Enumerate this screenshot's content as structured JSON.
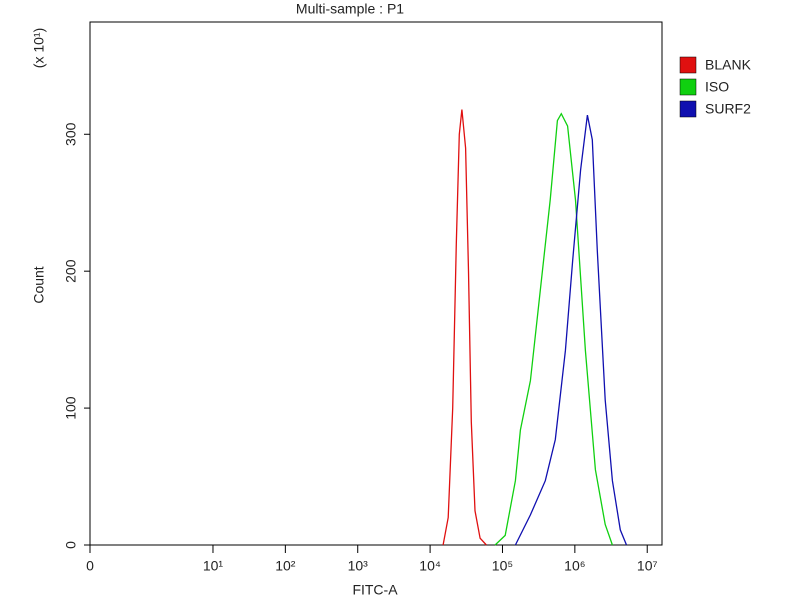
{
  "chart_data": {
    "type": "line",
    "title": "Multi-sample : P1",
    "xlabel": "FITC-A",
    "ylabel": "Count",
    "y_multiplier": "(x 10¹)",
    "xscale": "log",
    "xlim": [
      0,
      16000000
    ],
    "xticks": [
      0,
      {
        "value": 10,
        "label": "10¹"
      },
      {
        "value": 100,
        "label": "10²"
      },
      {
        "value": 1000,
        "label": "10³"
      },
      {
        "value": 10000,
        "label": "10⁴"
      },
      {
        "value": 100000,
        "label": "10⁵"
      },
      {
        "value": 1000000,
        "label": "10⁶"
      },
      {
        "value": 10000000,
        "label": "10⁷"
      }
    ],
    "ylim": [
      0,
      382
    ],
    "yticks": [
      0,
      100,
      200,
      300
    ],
    "legend": "right",
    "series": [
      {
        "name": "BLANK",
        "color": "#e01010",
        "x": [
          15100,
          17800,
          20500,
          23000,
          25300,
          27500,
          30900,
          33900,
          37100,
          41700,
          49000,
          60000
        ],
        "values": [
          0,
          20,
          100,
          220,
          300,
          318,
          290,
          200,
          90,
          25,
          5,
          0
        ]
      },
      {
        "name": "ISO",
        "color": "#10d010",
        "x": [
          79000,
          109000,
          151000,
          177000,
          243000,
          333000,
          456000,
          574000,
          650000,
          795000,
          1020000,
          1400000,
          1920000,
          2630000,
          3300000
        ],
        "values": [
          0,
          7,
          47,
          84,
          120,
          186,
          252,
          310,
          315,
          306,
          252,
          142,
          55,
          15,
          0
        ]
      },
      {
        "name": "SURF2",
        "color": "#1010b0",
        "x": [
          151000,
          243000,
          390000,
          537000,
          740000,
          935000,
          1200000,
          1490000,
          1740000,
          2040000,
          2630000,
          3300000,
          4240000,
          5170000
        ],
        "values": [
          0,
          22,
          47,
          77,
          142,
          208,
          274,
          314,
          296,
          215,
          106,
          47,
          11,
          0
        ]
      }
    ]
  }
}
